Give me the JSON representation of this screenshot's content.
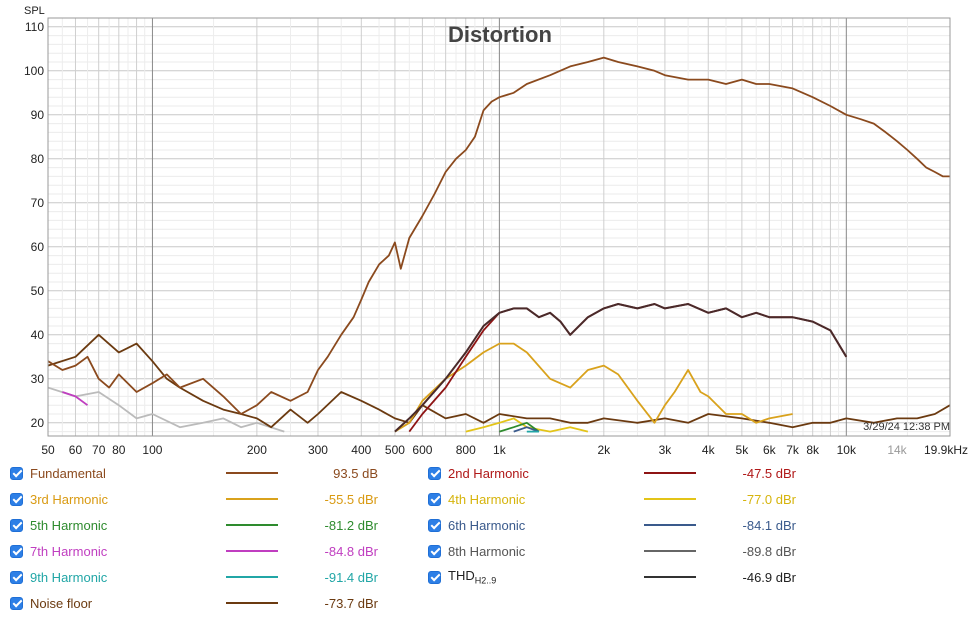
{
  "chart_data": {
    "type": "line",
    "title": "Distortion",
    "ylabel": "SPL",
    "xlabel": "",
    "x_scale": "log",
    "xlim": [
      50,
      19900
    ],
    "ylim": [
      17,
      112
    ],
    "grid": true,
    "timestamp": "3/29/24 12:38 PM",
    "y_ticks": [
      20,
      30,
      40,
      50,
      60,
      70,
      80,
      90,
      100,
      110
    ],
    "x_ticks": [
      {
        "v": 50,
        "label": "50",
        "color": "#222222"
      },
      {
        "v": 60,
        "label": "60",
        "color": "#222222"
      },
      {
        "v": 70,
        "label": "70",
        "color": "#222222"
      },
      {
        "v": 80,
        "label": "80",
        "color": "#222222"
      },
      {
        "v": 100,
        "label": "100",
        "color": "#222222"
      },
      {
        "v": 200,
        "label": "200",
        "color": "#222222"
      },
      {
        "v": 300,
        "label": "300",
        "color": "#222222"
      },
      {
        "v": 400,
        "label": "400",
        "color": "#222222"
      },
      {
        "v": 500,
        "label": "500",
        "color": "#222222"
      },
      {
        "v": 600,
        "label": "600",
        "color": "#222222"
      },
      {
        "v": 800,
        "label": "800",
        "color": "#222222"
      },
      {
        "v": 1000,
        "label": "1k",
        "color": "#222222"
      },
      {
        "v": 2000,
        "label": "2k",
        "color": "#222222"
      },
      {
        "v": 3000,
        "label": "3k",
        "color": "#222222"
      },
      {
        "v": 4000,
        "label": "4k",
        "color": "#222222"
      },
      {
        "v": 5000,
        "label": "5k",
        "color": "#222222"
      },
      {
        "v": 6000,
        "label": "6k",
        "color": "#222222"
      },
      {
        "v": 7000,
        "label": "7k",
        "color": "#222222"
      },
      {
        "v": 8000,
        "label": "8k",
        "color": "#222222"
      },
      {
        "v": 10000,
        "label": "10k",
        "color": "#222222"
      },
      {
        "v": 14000,
        "label": "14k",
        "color": "#999999"
      },
      {
        "v": 19900,
        "label": "19.9kHz",
        "color": "#222222"
      }
    ],
    "series": [
      {
        "name": "Fundamental",
        "color": "#8B4A1E",
        "value": "93.5 dB",
        "x": [
          50,
          55,
          60,
          65,
          70,
          75,
          80,
          90,
          100,
          110,
          120,
          140,
          160,
          180,
          200,
          220,
          250,
          280,
          300,
          320,
          350,
          380,
          400,
          420,
          450,
          480,
          500,
          520,
          550,
          600,
          650,
          700,
          750,
          800,
          850,
          900,
          950,
          1000,
          1100,
          1200,
          1400,
          1600,
          1800,
          2000,
          2200,
          2500,
          2800,
          3000,
          3500,
          4000,
          4500,
          5000,
          5500,
          6000,
          7000,
          8000,
          9000,
          10000,
          11000,
          12000,
          13000,
          14000,
          15000,
          16000,
          17000,
          18000,
          19000,
          19900
        ],
        "y": [
          34,
          32,
          33,
          35,
          30,
          28,
          31,
          27,
          29,
          31,
          28,
          30,
          26,
          22,
          24,
          27,
          25,
          27,
          32,
          35,
          40,
          44,
          48,
          52,
          56,
          58,
          61,
          55,
          62,
          67,
          72,
          77,
          80,
          82,
          85,
          91,
          93,
          94,
          95,
          97,
          99,
          101,
          102,
          103,
          102,
          101,
          100,
          99,
          98,
          98,
          97,
          98,
          97,
          97,
          96,
          94,
          92,
          90,
          89,
          88,
          86,
          84,
          82,
          80,
          78,
          77,
          76,
          76
        ]
      },
      {
        "name": "2nd Harmonic",
        "color": "#8E1414",
        "value": "-47.5 dBr",
        "x": [
          550,
          600,
          700,
          800,
          900,
          1000,
          1100,
          1200,
          1300,
          1400,
          1500,
          1600,
          1800,
          2000,
          2200,
          2500,
          2800,
          3000,
          3500,
          4000,
          4500,
          5000,
          5500,
          6000,
          7000,
          8000,
          9000,
          10000
        ],
        "y": [
          18,
          22,
          28,
          35,
          41,
          45,
          46,
          46,
          44,
          45,
          43,
          40,
          44,
          46,
          47,
          46,
          47,
          46,
          47,
          45,
          46,
          44,
          45,
          44,
          44,
          43,
          41,
          35
        ]
      },
      {
        "name": "3rd Harmonic",
        "color": "#D9A21C",
        "value": "-55.5 dBr",
        "x": [
          500,
          550,
          600,
          700,
          800,
          900,
          1000,
          1100,
          1200,
          1400,
          1600,
          1800,
          2000,
          2200,
          2500,
          2800,
          3000,
          3200,
          3500,
          3800,
          4000,
          4500,
          5000,
          5500,
          6000,
          7000
        ],
        "y": [
          18,
          20,
          25,
          30,
          33,
          36,
          38,
          38,
          36,
          30,
          28,
          32,
          33,
          31,
          25,
          20,
          24,
          27,
          32,
          27,
          26,
          22,
          22,
          20,
          21,
          22
        ]
      },
      {
        "name": "4th Harmonic",
        "color": "#E3C418",
        "value": "-77.0 dBr",
        "x": [
          800,
          900,
          1000,
          1100,
          1200,
          1400,
          1600,
          1800
        ],
        "y": [
          18,
          19,
          20,
          21,
          19,
          18,
          19,
          18
        ]
      },
      {
        "name": "5th Harmonic",
        "color": "#2E8B2E",
        "value": "-81.2 dBr",
        "x": [
          1000,
          1100,
          1200,
          1300
        ],
        "y": [
          18,
          19,
          20,
          18
        ]
      },
      {
        "name": "6th Harmonic",
        "color": "#3A5A8C",
        "value": "-84.1 dBr",
        "x": [
          1100,
          1200,
          1300
        ],
        "y": [
          18,
          19,
          18
        ]
      },
      {
        "name": "7th Harmonic",
        "color": "#C03EC0",
        "value": "-84.8 dBr",
        "x": [
          55,
          60,
          65
        ],
        "y": [
          27,
          26,
          24
        ]
      },
      {
        "name": "9th Harmonic",
        "color": "#21A6A6",
        "value": "-91.4 dBr",
        "x": [
          1200,
          1300
        ],
        "y": [
          18,
          18
        ]
      },
      {
        "name": "Noise floor",
        "color": "#6B3A10",
        "value": "-73.7 dBr",
        "x": [
          50,
          60,
          70,
          80,
          90,
          100,
          110,
          120,
          140,
          160,
          180,
          200,
          220,
          250,
          280,
          300,
          350,
          400,
          450,
          500,
          550,
          600,
          700,
          800,
          900,
          1000,
          1200,
          1400,
          1600,
          1800,
          2000,
          2500,
          3000,
          3500,
          4000,
          5000,
          6000,
          7000,
          8000,
          9000,
          10000,
          12000,
          14000,
          16000,
          18000,
          19900
        ],
        "y": [
          33,
          35,
          40,
          36,
          38,
          34,
          30,
          28,
          25,
          23,
          22,
          21,
          19,
          23,
          20,
          22,
          27,
          25,
          23,
          21,
          20,
          24,
          21,
          22,
          20,
          22,
          21,
          21,
          20,
          20,
          21,
          20,
          21,
          20,
          22,
          21,
          20,
          19,
          20,
          20,
          21,
          20,
          21,
          21,
          22,
          24
        ]
      },
      {
        "name": "8th Harmonic",
        "color": "#BBBBBB",
        "value": "-89.8 dBr",
        "x": [
          50,
          60,
          70,
          80,
          90,
          100,
          120,
          140,
          160,
          180,
          200,
          240
        ],
        "y": [
          28,
          26,
          27,
          24,
          21,
          22,
          19,
          20,
          21,
          19,
          20,
          18
        ]
      },
      {
        "name": "THD",
        "color": "#4A2A2A",
        "value": "-46.9 dBr",
        "x": [
          500,
          550,
          600,
          700,
          800,
          900,
          1000,
          1100,
          1200,
          1300,
          1400,
          1500,
          1600,
          1800,
          2000,
          2200,
          2500,
          2800,
          3000,
          3500,
          4000,
          4500,
          5000,
          5500,
          6000,
          7000,
          8000,
          9000,
          10000
        ],
        "y": [
          18,
          21,
          24,
          30,
          36,
          42,
          45,
          46,
          46,
          44,
          45,
          43,
          40,
          44,
          46,
          47,
          46,
          47,
          46,
          47,
          45,
          46,
          44,
          45,
          44,
          44,
          43,
          41,
          35
        ]
      }
    ]
  },
  "legend": {
    "items": [
      {
        "key": "fundamental",
        "label": "Fundamental",
        "value": "93.5 dB",
        "color": "#8B4A1E",
        "text_color": "#8B4A1E"
      },
      {
        "key": "h2",
        "label": "2nd Harmonic",
        "value": "-47.5 dBr",
        "color": "#8E1414",
        "text_color": "#B01818"
      },
      {
        "key": "h3",
        "label": "3rd Harmonic",
        "value": "-55.5 dBr",
        "color": "#D9A21C",
        "text_color": "#D99A12"
      },
      {
        "key": "h4",
        "label": "4th Harmonic",
        "value": "-77.0 dBr",
        "color": "#E3C418",
        "text_color": "#D6B40C"
      },
      {
        "key": "h5",
        "label": "5th Harmonic",
        "value": "-81.2 dBr",
        "color": "#2E8B2E",
        "text_color": "#2E8B2E"
      },
      {
        "key": "h6",
        "label": "6th Harmonic",
        "value": "-84.1 dBr",
        "color": "#3A5A8C",
        "text_color": "#3A5A8C"
      },
      {
        "key": "h7",
        "label": "7th Harmonic",
        "value": "-84.8 dBr",
        "color": "#C03EC0",
        "text_color": "#C03EC0"
      },
      {
        "key": "h8",
        "label": "8th Harmonic",
        "value": "-89.8 dBr",
        "color": "#666666",
        "text_color": "#555555"
      },
      {
        "key": "h9",
        "label": "9th Harmonic",
        "value": "-91.4 dBr",
        "color": "#21A6A6",
        "text_color": "#21A6A6"
      },
      {
        "key": "thd",
        "label": "THD",
        "label_sub": "H2..9",
        "value": "-46.9 dBr",
        "color": "#333333",
        "text_color": "#222222"
      },
      {
        "key": "noise",
        "label": "Noise floor",
        "value": "-73.7 dBr",
        "color": "#6B3A10",
        "text_color": "#6B3A10"
      }
    ]
  }
}
